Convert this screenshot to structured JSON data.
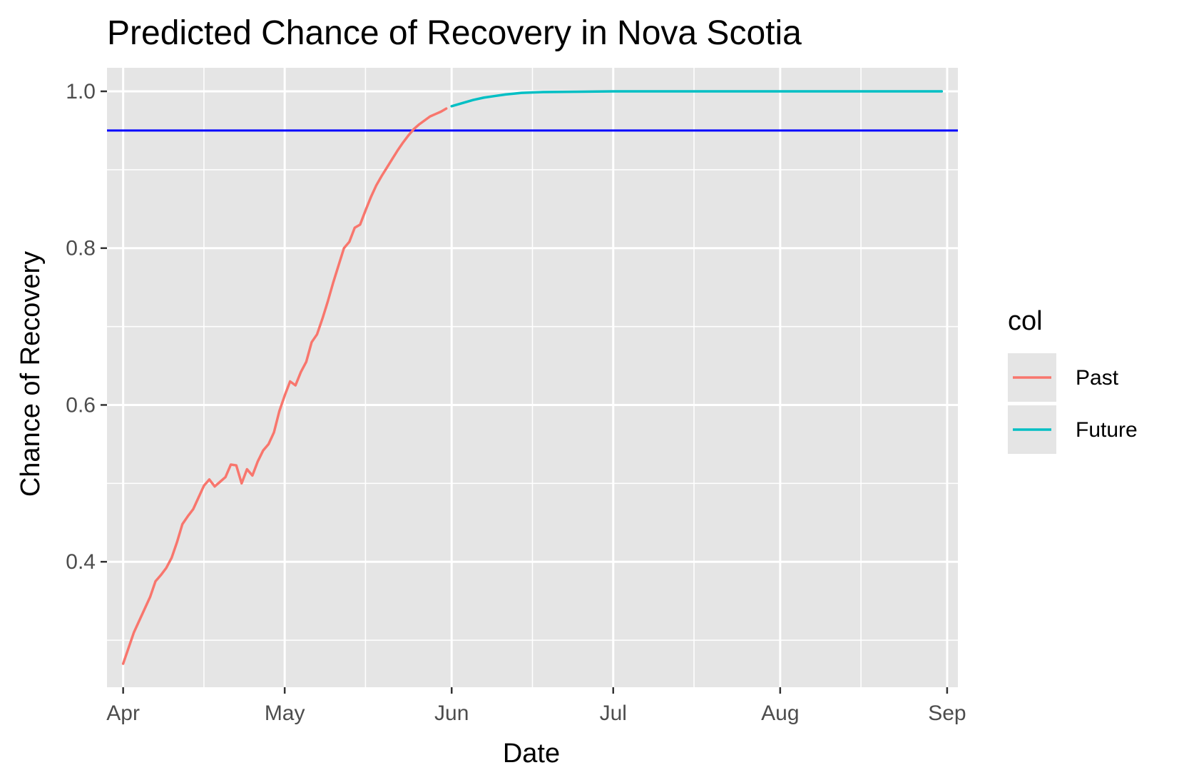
{
  "chart_data": {
    "type": "line",
    "title": "Predicted Chance of Recovery in Nova Scotia",
    "xlabel": "Date",
    "ylabel": "Chance of Recovery",
    "x_type": "date",
    "xlim": [
      "2020-03-29",
      "2020-09-03"
    ],
    "ylim": [
      0.24,
      1.03
    ],
    "grid": true,
    "background": "#e5e5e5",
    "x_ticks": [
      {
        "label": "Apr",
        "date": "2020-04-01"
      },
      {
        "label": "May",
        "date": "2020-05-01"
      },
      {
        "label": "Jun",
        "date": "2020-06-01"
      },
      {
        "label": "Jul",
        "date": "2020-07-01"
      },
      {
        "label": "Aug",
        "date": "2020-08-01"
      },
      {
        "label": "Sep",
        "date": "2020-09-01"
      }
    ],
    "x_minor_ticks": [
      "2020-04-16",
      "2020-05-16",
      "2020-06-16",
      "2020-07-16",
      "2020-08-16"
    ],
    "y_ticks": [
      {
        "label": "0.4",
        "value": 0.4
      },
      {
        "label": "0.6",
        "value": 0.6
      },
      {
        "label": "0.8",
        "value": 0.8
      },
      {
        "label": "1.0",
        "value": 1.0
      }
    ],
    "y_minor_ticks": [
      0.3,
      0.5,
      0.7,
      0.9
    ],
    "reference_line": {
      "y": 0.95,
      "color": "#0000ff"
    },
    "legend": {
      "title": "col",
      "position": "right"
    },
    "series": [
      {
        "name": "Past",
        "color": "#f8766d",
        "points": [
          [
            "2020-04-01",
            0.27
          ],
          [
            "2020-04-02",
            0.29
          ],
          [
            "2020-04-03",
            0.31
          ],
          [
            "2020-04-04",
            0.325
          ],
          [
            "2020-04-05",
            0.34
          ],
          [
            "2020-04-06",
            0.355
          ],
          [
            "2020-04-07",
            0.375
          ],
          [
            "2020-04-08",
            0.383
          ],
          [
            "2020-04-09",
            0.392
          ],
          [
            "2020-04-10",
            0.405
          ],
          [
            "2020-04-11",
            0.425
          ],
          [
            "2020-04-12",
            0.448
          ],
          [
            "2020-04-13",
            0.458
          ],
          [
            "2020-04-14",
            0.467
          ],
          [
            "2020-04-15",
            0.482
          ],
          [
            "2020-04-16",
            0.497
          ],
          [
            "2020-04-17",
            0.505
          ],
          [
            "2020-04-18",
            0.496
          ],
          [
            "2020-04-19",
            0.502
          ],
          [
            "2020-04-20",
            0.508
          ],
          [
            "2020-04-21",
            0.524
          ],
          [
            "2020-04-22",
            0.523
          ],
          [
            "2020-04-23",
            0.5
          ],
          [
            "2020-04-24",
            0.518
          ],
          [
            "2020-04-25",
            0.51
          ],
          [
            "2020-04-26",
            0.528
          ],
          [
            "2020-04-27",
            0.542
          ],
          [
            "2020-04-28",
            0.55
          ],
          [
            "2020-04-29",
            0.565
          ],
          [
            "2020-04-30",
            0.592
          ],
          [
            "2020-05-01",
            0.612
          ],
          [
            "2020-05-02",
            0.63
          ],
          [
            "2020-05-03",
            0.625
          ],
          [
            "2020-05-04",
            0.642
          ],
          [
            "2020-05-05",
            0.655
          ],
          [
            "2020-05-06",
            0.68
          ],
          [
            "2020-05-07",
            0.69
          ],
          [
            "2020-05-08",
            0.71
          ],
          [
            "2020-05-09",
            0.732
          ],
          [
            "2020-05-10",
            0.756
          ],
          [
            "2020-05-11",
            0.778
          ],
          [
            "2020-05-12",
            0.8
          ],
          [
            "2020-05-13",
            0.808
          ],
          [
            "2020-05-14",
            0.826
          ],
          [
            "2020-05-15",
            0.83
          ],
          [
            "2020-05-16",
            0.848
          ],
          [
            "2020-05-17",
            0.865
          ],
          [
            "2020-05-18",
            0.88
          ],
          [
            "2020-05-19",
            0.892
          ],
          [
            "2020-05-20",
            0.903
          ],
          [
            "2020-05-21",
            0.914
          ],
          [
            "2020-05-22",
            0.925
          ],
          [
            "2020-05-23",
            0.935
          ],
          [
            "2020-05-24",
            0.944
          ],
          [
            "2020-05-25",
            0.952
          ],
          [
            "2020-05-26",
            0.958
          ],
          [
            "2020-05-27",
            0.963
          ],
          [
            "2020-05-28",
            0.968
          ],
          [
            "2020-05-29",
            0.971
          ],
          [
            "2020-05-30",
            0.974
          ],
          [
            "2020-05-31",
            0.978
          ]
        ]
      },
      {
        "name": "Future",
        "color": "#00bfc4",
        "points": [
          [
            "2020-06-01",
            0.981
          ],
          [
            "2020-06-03",
            0.985
          ],
          [
            "2020-06-05",
            0.989
          ],
          [
            "2020-06-07",
            0.992
          ],
          [
            "2020-06-09",
            0.994
          ],
          [
            "2020-06-11",
            0.996
          ],
          [
            "2020-06-14",
            0.998
          ],
          [
            "2020-06-18",
            0.999
          ],
          [
            "2020-06-25",
            0.9995
          ],
          [
            "2020-07-01",
            1.0
          ],
          [
            "2020-07-15",
            1.0
          ],
          [
            "2020-08-01",
            1.0
          ],
          [
            "2020-08-15",
            1.0
          ],
          [
            "2020-08-31",
            1.0
          ]
        ]
      }
    ]
  }
}
